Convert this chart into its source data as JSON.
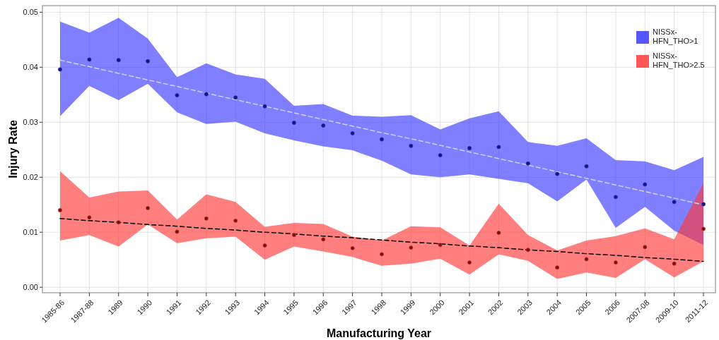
{
  "chart_data": {
    "type": "scatter",
    "xlabel": "Manufacturing Year",
    "ylabel": "Injury Rate",
    "categories": [
      "1985-86",
      "1987-88",
      "1989",
      "1990",
      "1991",
      "1992",
      "1993",
      "1994",
      "1995",
      "1996",
      "1997",
      "1998",
      "1999",
      "2000",
      "2001",
      "2002",
      "2003",
      "2004",
      "2005",
      "2006",
      "2007-08",
      "2009-10",
      "2011-12"
    ],
    "ylim": [
      -0.001,
      0.0512
    ],
    "yticks": [
      {
        "value": 0,
        "label": "0.00"
      },
      0.01,
      0.02,
      0.03,
      0.04,
      0.05
    ],
    "grid": true,
    "legend": "top right",
    "marker": "circle",
    "series": [
      {
        "name": "NISSx-HFN_THO>1",
        "color": "#3a3aff",
        "values": [
          0.0396,
          0.0414,
          0.0413,
          0.0411,
          0.0349,
          0.0351,
          0.0345,
          0.0329,
          0.0299,
          0.0294,
          0.028,
          0.0269,
          0.0257,
          0.024,
          0.0253,
          0.0255,
          0.0225,
          0.0206,
          0.022,
          0.0164,
          0.0187,
          0.0155,
          0.0151
        ],
        "upper": [
          0.0483,
          0.0463,
          0.049,
          0.0452,
          0.0382,
          0.0407,
          0.0387,
          0.0379,
          0.033,
          0.0333,
          0.0312,
          0.031,
          0.0313,
          0.0287,
          0.0307,
          0.032,
          0.0264,
          0.0257,
          0.0271,
          0.0231,
          0.0229,
          0.0213,
          0.0237
        ],
        "lower": [
          0.0311,
          0.0366,
          0.034,
          0.037,
          0.0318,
          0.0297,
          0.0301,
          0.028,
          0.0267,
          0.0256,
          0.0249,
          0.023,
          0.0205,
          0.02,
          0.0205,
          0.0197,
          0.0189,
          0.0156,
          0.0196,
          0.0108,
          0.0146,
          0.0103,
          0.0077
        ]
      },
      {
        "name": "NISSx-HFN_THO>2.5",
        "color": "#ff3a3a",
        "values": [
          0.014,
          0.0127,
          0.0118,
          0.0144,
          0.0101,
          0.0125,
          0.0121,
          0.0076,
          0.0095,
          0.0087,
          0.0071,
          0.006,
          0.0072,
          0.0077,
          0.0045,
          0.0099,
          0.0068,
          0.0036,
          0.0051,
          0.0045,
          0.0073,
          0.0043,
          0.0106
        ],
        "upper": [
          0.0211,
          0.0163,
          0.0174,
          0.0176,
          0.0123,
          0.0169,
          0.0155,
          0.011,
          0.0117,
          0.0115,
          0.0092,
          0.0085,
          0.0111,
          0.0109,
          0.0076,
          0.0152,
          0.0095,
          0.0067,
          0.0085,
          0.0093,
          0.0107,
          0.0087,
          0.0189
        ],
        "lower": [
          0.0085,
          0.0095,
          0.0074,
          0.0114,
          0.008,
          0.0089,
          0.0092,
          0.005,
          0.0074,
          0.0065,
          0.0055,
          0.0039,
          0.0043,
          0.0052,
          0.0023,
          0.006,
          0.0048,
          0.0015,
          0.0027,
          0.0017,
          0.0051,
          0.0018,
          0.0047
        ]
      },
      {
        "type": "line",
        "color": "#d0d0e8",
        "line_style": "dashed",
        "marker": "none",
        "values": [
          0.0413,
          0.0401,
          0.0389,
          0.0377,
          0.0365,
          0.0353,
          0.0341,
          0.0329,
          0.0317,
          0.0305,
          0.0293,
          0.0281,
          0.027,
          0.0258,
          0.0246,
          0.0234,
          0.0222,
          0.021,
          0.0198,
          0.0186,
          0.0174,
          0.0162,
          0.015
        ]
      },
      {
        "type": "line",
        "color": "#000000",
        "line_style": "dashed",
        "marker": "none",
        "values": [
          0.0125,
          0.0121,
          0.0118,
          0.0114,
          0.0111,
          0.0107,
          0.0104,
          0.01,
          0.0097,
          0.0093,
          0.009,
          0.0086,
          0.0082,
          0.0079,
          0.0075,
          0.0072,
          0.0068,
          0.0065,
          0.0061,
          0.0058,
          0.0054,
          0.0051,
          0.0047
        ]
      }
    ]
  }
}
